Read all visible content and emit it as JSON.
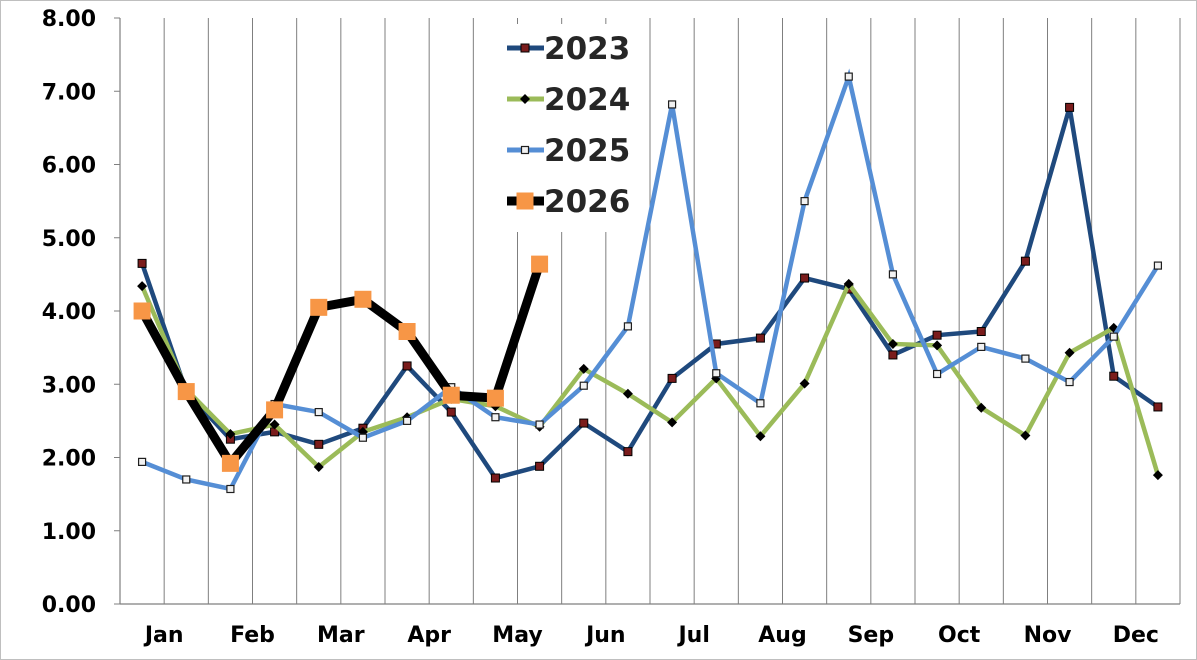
{
  "chart_data": {
    "type": "line",
    "title": "",
    "xlabel": "",
    "ylabel": "",
    "ylim": [
      0,
      8
    ],
    "y_ticks": [
      "0.00",
      "1.00",
      "2.00",
      "3.00",
      "4.00",
      "5.00",
      "6.00",
      "7.00",
      "8.00"
    ],
    "x_tick_labels": [
      "Jan",
      "Feb",
      "Mar",
      "Apr",
      "May",
      "Jun",
      "Jul",
      "Aug",
      "Sep",
      "Oct",
      "Nov",
      "Dec"
    ],
    "grid": "vertical",
    "legend_position": "top-center",
    "points_per_month": 2,
    "series": [
      {
        "name": "2023",
        "color": "#1f497d",
        "marker": "square-dark",
        "values": [
          4.65,
          2.9,
          2.25,
          2.35,
          2.18,
          2.4,
          3.25,
          2.62,
          1.72,
          1.88,
          2.47,
          2.08,
          3.08,
          3.55,
          3.63,
          4.45,
          4.3,
          3.4,
          3.67,
          3.72,
          4.68,
          6.78,
          3.11,
          2.69
        ]
      },
      {
        "name": "2024",
        "color": "#9bbb59",
        "marker": "diamond",
        "values": [
          4.34,
          2.93,
          2.32,
          2.45,
          1.87,
          2.35,
          2.55,
          2.8,
          2.7,
          2.42,
          3.21,
          2.87,
          2.48,
          3.08,
          2.29,
          3.01,
          4.37,
          3.55,
          3.53,
          2.68,
          2.3,
          3.43,
          3.77,
          1.76
        ]
      },
      {
        "name": "2025",
        "color": "#558ed5",
        "marker": "square-small",
        "values": [
          1.94,
          1.7,
          1.57,
          2.73,
          2.62,
          2.27,
          2.5,
          2.96,
          2.55,
          2.45,
          2.98,
          3.79,
          6.82,
          3.15,
          2.74,
          5.5,
          7.2,
          4.5,
          3.14,
          3.51,
          3.35,
          3.03,
          3.65,
          4.62
        ]
      },
      {
        "name": "2026",
        "color": "#000000",
        "marker": "square-orange",
        "values": [
          4.0,
          2.9,
          1.92,
          2.65,
          4.05,
          4.16,
          3.72,
          2.85,
          2.81,
          4.64
        ]
      }
    ]
  }
}
